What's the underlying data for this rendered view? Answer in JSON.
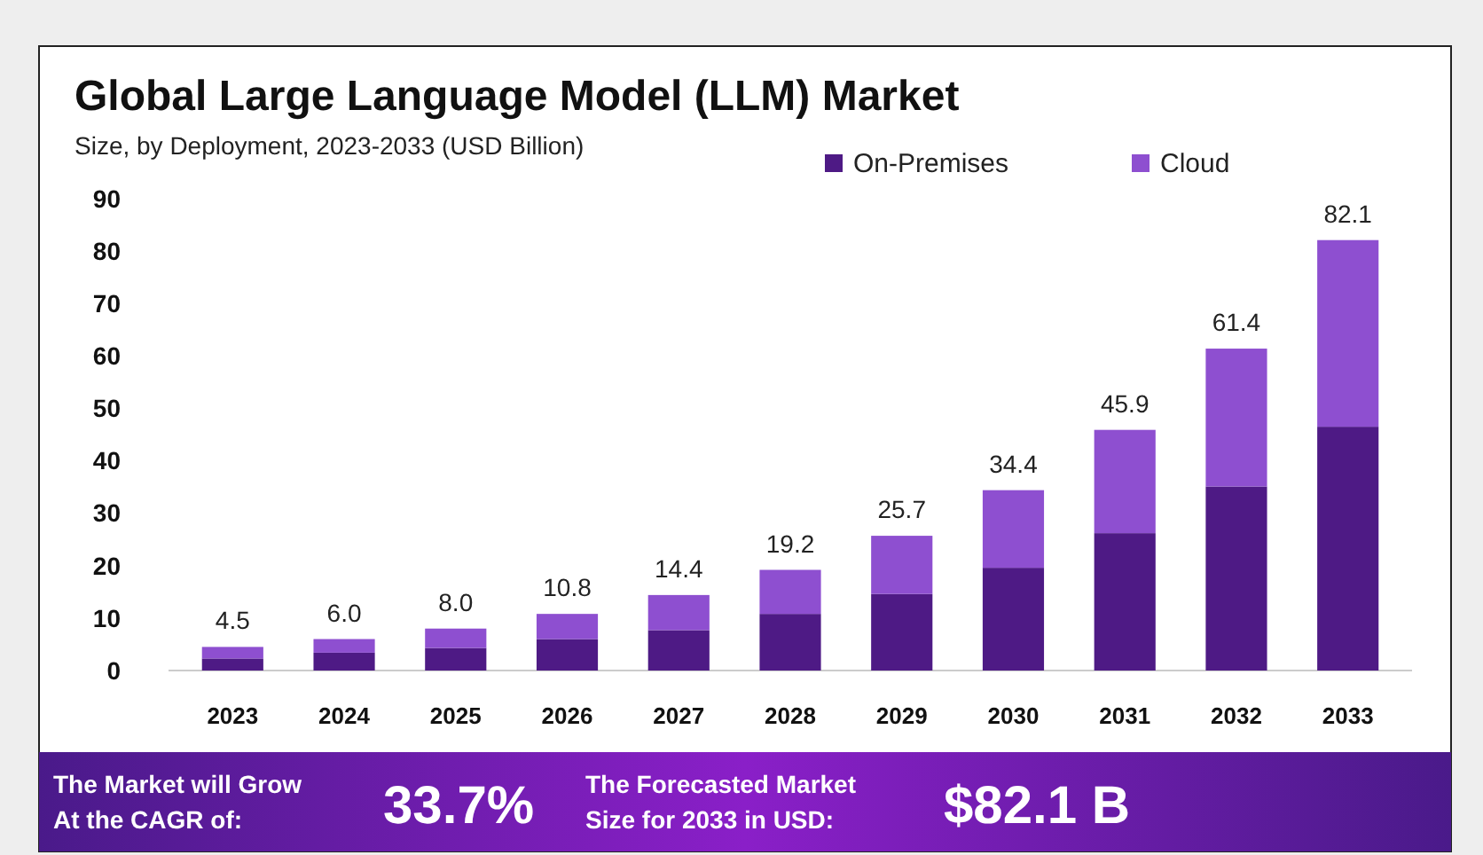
{
  "chart_data": {
    "type": "bar",
    "title": "Global Large Language Model (LLM) Market",
    "subtitle": "Size, by Deployment, 2023-2033 (USD Billion)",
    "categories": [
      "2023",
      "2024",
      "2025",
      "2026",
      "2027",
      "2028",
      "2029",
      "2030",
      "2031",
      "2032",
      "2033"
    ],
    "stacked": true,
    "series": [
      {
        "name": "On-Premises",
        "color": "#4e1a85",
        "values": [
          2.3,
          3.4,
          4.3,
          6.0,
          7.7,
          10.8,
          14.6,
          19.6,
          26.2,
          35.1,
          46.5
        ]
      },
      {
        "name": "Cloud",
        "color": "#8e4fd0",
        "values": [
          2.2,
          2.6,
          3.7,
          4.8,
          6.7,
          8.4,
          11.1,
          14.8,
          19.7,
          26.3,
          35.6
        ]
      }
    ],
    "totals": [
      "4.5",
      "6.0",
      "8.0",
      "10.8",
      "14.4",
      "19.2",
      "25.7",
      "34.4",
      "45.9",
      "61.4",
      "82.1"
    ],
    "ylim": [
      0,
      90
    ],
    "yticks": [
      0,
      10,
      20,
      30,
      40,
      50,
      60,
      70,
      80,
      90
    ],
    "grid": false,
    "legend": "top right",
    "annotations": [
      "The Market will Grow At the CAGR of:",
      "33.7%",
      "The Forecasted Market Size for 2033 in USD:",
      "$82.1 B"
    ]
  }
}
